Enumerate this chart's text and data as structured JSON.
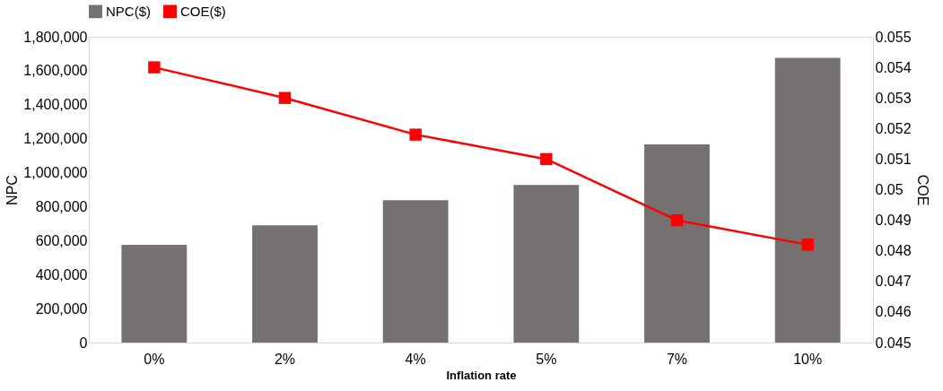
{
  "chart_data": {
    "type": "bar",
    "xlabel": "Inflation rate",
    "ylabel": "NPC",
    "y2label": "COE",
    "categories": [
      "0%",
      "2%",
      "4%",
      "5%",
      "7%",
      "10%"
    ],
    "series": [
      {
        "name": "NPC($)",
        "color": "#767171",
        "values": [
          575000,
          690000,
          838000,
          928000,
          1167000,
          1676000
        ]
      },
      {
        "name": "COE($)",
        "type": "line",
        "axis": "y2",
        "color": "#ff0000",
        "marker": "square",
        "values": [
          0.054,
          0.053,
          0.0518,
          0.051,
          0.049,
          0.0482
        ]
      }
    ],
    "ylim": [
      0,
      1800000
    ],
    "yticks": [
      0,
      {
        "value": 200000,
        "label": "200,000"
      },
      {
        "value": 400000,
        "label": "400,000"
      },
      {
        "value": 600000,
        "label": "600,000"
      },
      {
        "value": 800000,
        "label": "800,000"
      },
      {
        "value": 1000000,
        "label": "1,000,000"
      },
      {
        "value": 1200000,
        "label": "1,200,000"
      },
      {
        "value": 1400000,
        "label": "1,400,000"
      },
      {
        "value": 1600000,
        "label": "1,600,000"
      },
      {
        "value": 1800000,
        "label": "1,800,000"
      }
    ],
    "y2lim": [
      0.045,
      0.055
    ],
    "y2ticks": [
      0.045,
      0.046,
      0.047,
      0.048,
      0.049,
      0.05,
      0.051,
      0.052,
      0.053,
      0.054,
      0.055
    ],
    "legend": "top",
    "grid": false
  }
}
